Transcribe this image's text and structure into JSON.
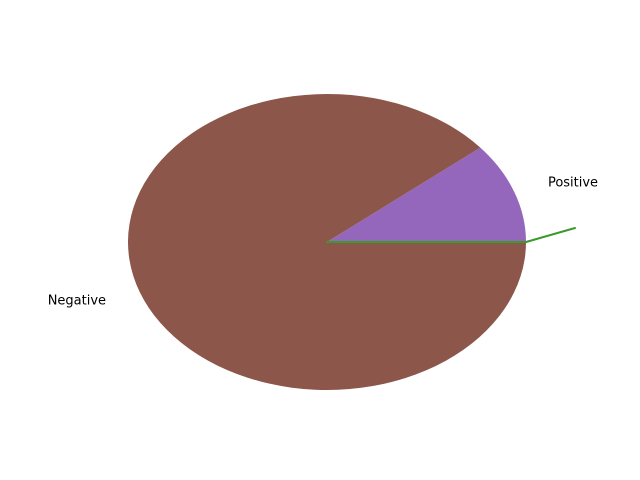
{
  "chart_data": {
    "type": "pie",
    "title": "",
    "slices": [
      {
        "label": "Positive",
        "value": 11,
        "color": "#9467bd"
      },
      {
        "label": "Negative",
        "value": 89,
        "color": "#8c564b"
      }
    ],
    "accent_line_color": "#3a9a2a"
  }
}
